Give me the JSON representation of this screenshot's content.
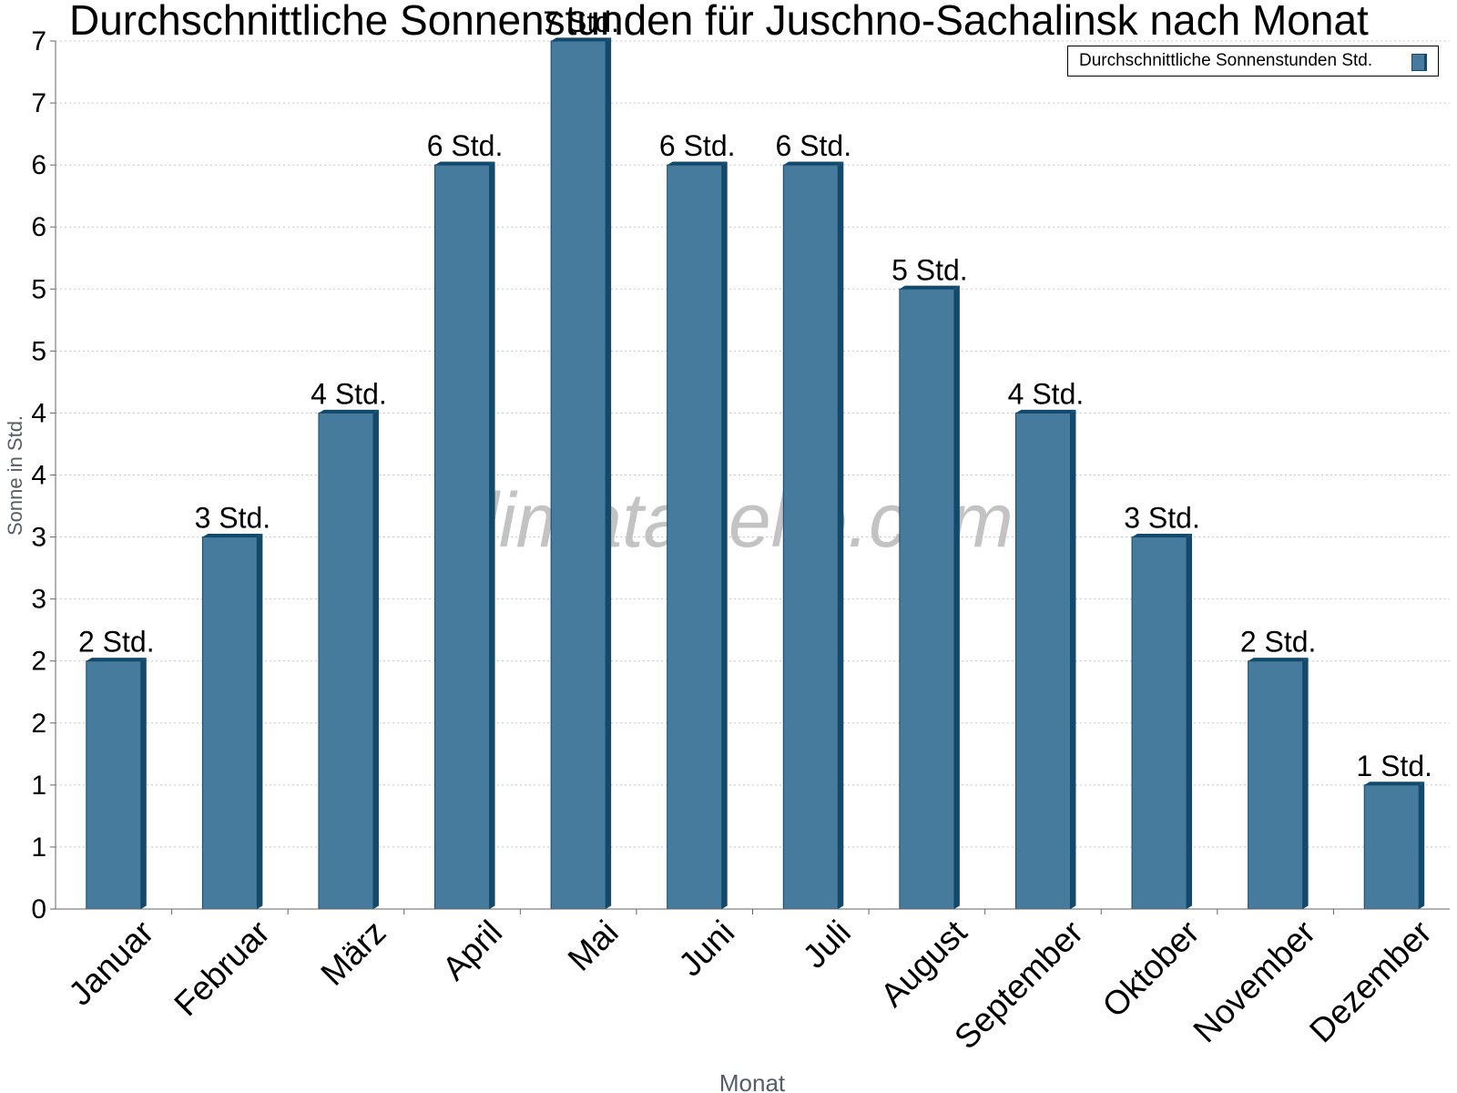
{
  "chart_data": {
    "type": "bar",
    "title": "Durchschnittliche Sonnenstunden für Juschno-Sachalinsk nach Monat",
    "xlabel": "Monat",
    "ylabel": "Sonne in Std.",
    "categories": [
      "Januar",
      "Februar",
      "März",
      "April",
      "Mai",
      "Juni",
      "Juli",
      "August",
      "September",
      "Oktober",
      "November",
      "Dezember"
    ],
    "series": [
      {
        "name": "Durchschnittliche Sonnenstunden Std.",
        "values": [
          2,
          3,
          4,
          6,
          7,
          6,
          6,
          5,
          4,
          3,
          2,
          1
        ],
        "labels": [
          "2 Std.",
          "3 Std.",
          "4 Std.",
          "6 Std.",
          "7 Std.",
          "6 Std.",
          "6 Std.",
          "5 Std.",
          "4 Std.",
          "3 Std.",
          "2 Std.",
          "1 Std."
        ]
      }
    ],
    "plot_values": [
      2,
      3,
      4,
      6,
      7,
      6,
      6,
      5,
      4,
      3,
      2,
      1
    ],
    "ylim": [
      0,
      7
    ],
    "y_tick_values": [
      0,
      0.5,
      1,
      1.5,
      2,
      2.5,
      3,
      3.5,
      4,
      4.5,
      5,
      5.5,
      6,
      6.5,
      7
    ],
    "y_tick_labels": [
      "0",
      "1",
      "1",
      "2",
      "2",
      "3",
      "3",
      "4",
      "4",
      "5",
      "5",
      "6",
      "6",
      "7",
      "7"
    ],
    "grid": true,
    "legend_position": "top-right",
    "watermark": "klimatabelle.com",
    "colors": {
      "bar": "#477b9e",
      "bar_side": "#13496a",
      "grid": "#c8c8c8",
      "axis_label": "#555e68"
    }
  }
}
